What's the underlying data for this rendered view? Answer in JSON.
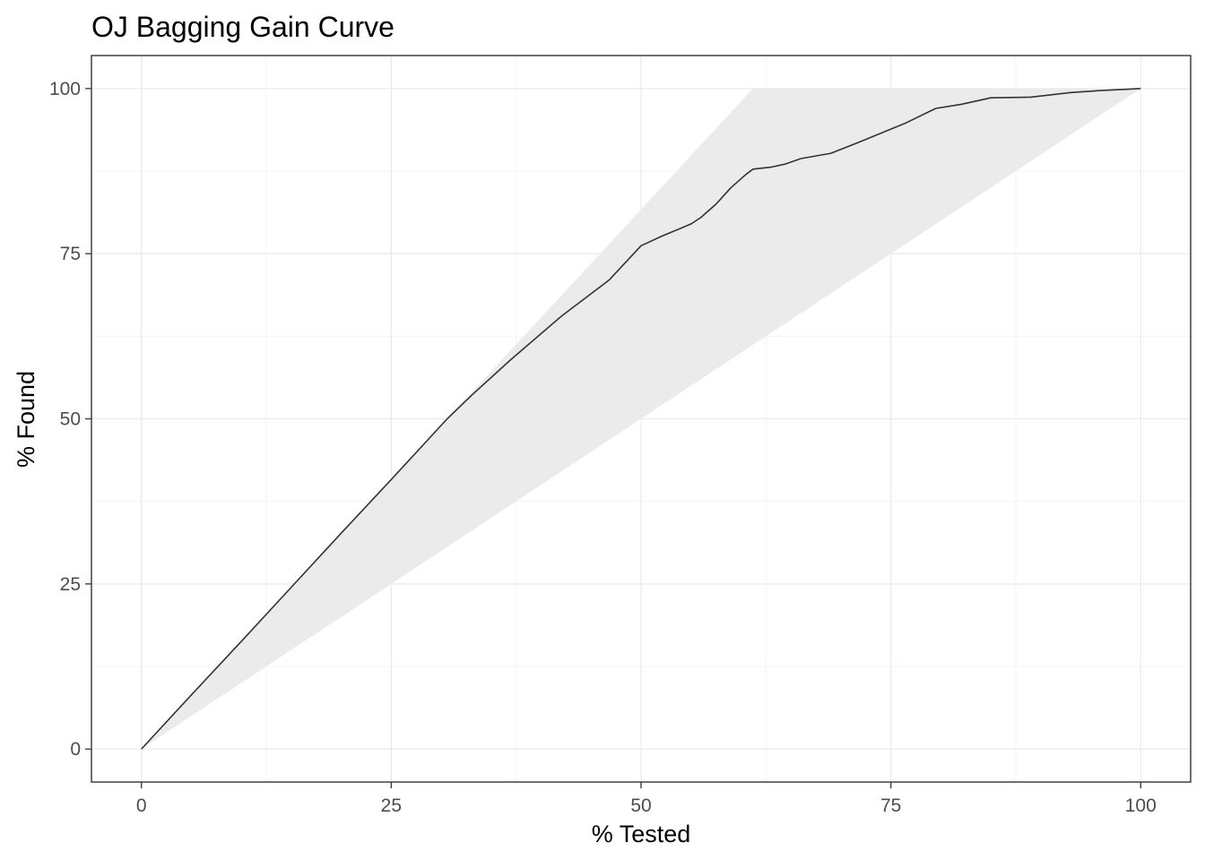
{
  "chart_data": {
    "type": "line",
    "title": "OJ Bagging Gain Curve",
    "xlabel": "% Tested",
    "ylabel": "% Found",
    "xlim": [
      -5,
      105
    ],
    "ylim": [
      -5,
      105
    ],
    "x_ticks": [
      0,
      25,
      50,
      75,
      100
    ],
    "y_ticks": [
      0,
      25,
      50,
      75,
      100
    ],
    "x_tick_labels": [
      "0",
      "25",
      "50",
      "75",
      "100"
    ],
    "y_tick_labels": [
      "0",
      "25",
      "50",
      "75",
      "100"
    ],
    "grid": true,
    "ribbon": {
      "upper": [
        [
          0,
          0
        ],
        [
          61.2,
          100
        ],
        [
          100,
          100
        ]
      ],
      "lower": [
        [
          0,
          0
        ],
        [
          100,
          100
        ]
      ]
    },
    "series": [
      {
        "x": [
          0,
          5,
          10,
          15,
          20,
          25,
          30.6,
          33,
          37,
          42,
          46.8,
          50,
          52,
          55,
          56,
          57.5,
          59,
          60.5,
          61.2,
          63,
          64.5,
          66,
          69,
          72,
          76.5,
          79.5,
          82,
          85,
          89,
          93,
          96,
          100
        ],
        "y": [
          0,
          8.2,
          16.3,
          24.5,
          32.7,
          40.8,
          50,
          53.5,
          59,
          65.5,
          71,
          76.2,
          77.6,
          79.5,
          80.5,
          82.5,
          85,
          87,
          87.8,
          88.1,
          88.6,
          89.4,
          90.2,
          92,
          94.8,
          97,
          97.6,
          98.6,
          98.7,
          99.4,
          99.7,
          100
        ]
      }
    ]
  }
}
